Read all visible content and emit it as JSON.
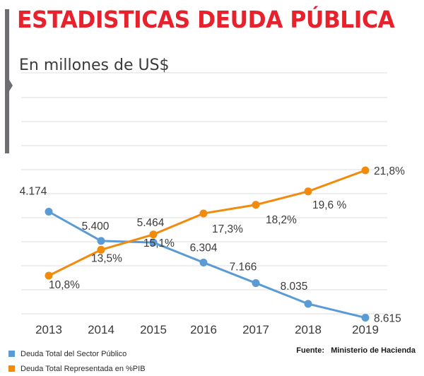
{
  "header": {
    "title": "ESTADISTICAS DEUDA PÚBLICA",
    "subtitle": "En millones de US$"
  },
  "colors": {
    "title": "#e8222c",
    "bar": "#6d6e71",
    "grid": "#dcdcdc",
    "series_debt": "#5b9bd5",
    "series_pib": "#f28a0b",
    "label": "#3a3a3a"
  },
  "chart_data": {
    "type": "line",
    "title": "ESTADISTICAS DEUDA PÚBLICA",
    "subtitle": "En millones de US$",
    "x": [
      "2013",
      "2014",
      "2015",
      "2016",
      "2017",
      "2018",
      "2019"
    ],
    "grid": true,
    "series": [
      {
        "name": "Deuda Total del Sector Público",
        "values": [
          4174,
          5400,
          5464,
          6304,
          7166,
          8035,
          8615
        ],
        "labels": [
          "4.174",
          "5.400",
          "5.464",
          "6.304",
          "7.166",
          "8.035",
          "8.615"
        ],
        "color": "#5b9bd5"
      },
      {
        "name": "Deuda Total Representada en %PIB",
        "values": [
          10.8,
          13.5,
          15.1,
          17.3,
          18.2,
          19.6,
          21.8
        ],
        "labels": [
          "10,8%",
          "13,5%",
          "15,1%",
          "17,3%",
          "18,2%",
          "19,6 %",
          "21,8%"
        ],
        "color": "#f28a0b"
      }
    ],
    "legend": [
      {
        "label": "Deuda Total del Sector Público",
        "color": "#5b9bd5"
      },
      {
        "label": "Deuda Total Representada en %PIB",
        "color": "#f28a0b"
      }
    ],
    "source_label": "Fuente:",
    "source_value": "Ministerio de Hacienda"
  }
}
